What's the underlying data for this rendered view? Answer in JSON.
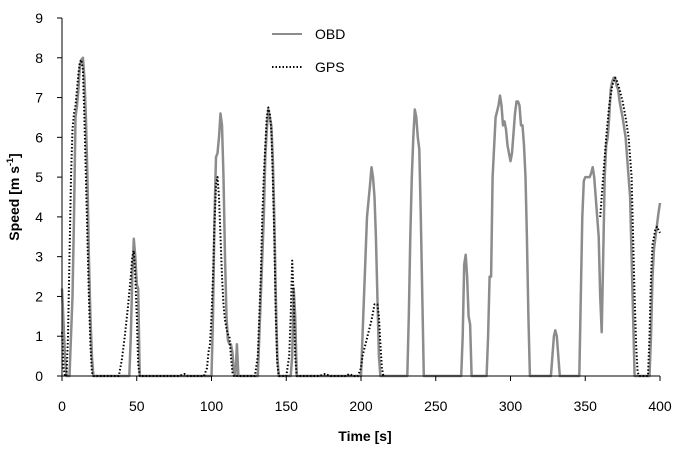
{
  "chart_data": {
    "type": "line",
    "xlabel": "Time [s]",
    "ylabel_main": "Speed [m s",
    "ylabel_sup": "-1",
    "ylabel_close": "]",
    "xlim": [
      0,
      400
    ],
    "ylim": [
      0,
      9
    ],
    "xticks": [
      0,
      50,
      100,
      150,
      200,
      250,
      300,
      350,
      400
    ],
    "yticks": [
      0,
      1,
      2,
      3,
      4,
      5,
      6,
      7,
      8,
      9
    ],
    "grid": false,
    "legend_position": "top-center",
    "series": [
      {
        "name": "OBD",
        "color": "#8c8c8c",
        "style": "solid",
        "points": [
          [
            0,
            2.2
          ],
          [
            2,
            0.5
          ],
          [
            3,
            0
          ],
          [
            5,
            0
          ],
          [
            7,
            2
          ],
          [
            8,
            4
          ],
          [
            9,
            6.5
          ],
          [
            10,
            6.8
          ],
          [
            11,
            7.2
          ],
          [
            12,
            7.8
          ],
          [
            13,
            7.95
          ],
          [
            14,
            8
          ],
          [
            15,
            7.5
          ],
          [
            16,
            6.5
          ],
          [
            17,
            5
          ],
          [
            18,
            3
          ],
          [
            19,
            1.5
          ],
          [
            20,
            0.5
          ],
          [
            21,
            0
          ],
          [
            45,
            0
          ],
          [
            46,
            1
          ],
          [
            47,
            2.5
          ],
          [
            48,
            3.45
          ],
          [
            49,
            3
          ],
          [
            50,
            2.3
          ],
          [
            51,
            2.2
          ],
          [
            52,
            0
          ],
          [
            100,
            0
          ],
          [
            101,
            1.5
          ],
          [
            102,
            4
          ],
          [
            103,
            5.5
          ],
          [
            104,
            5.6
          ],
          [
            105,
            6
          ],
          [
            106,
            6.6
          ],
          [
            107,
            6.3
          ],
          [
            108,
            5
          ],
          [
            109,
            3
          ],
          [
            110,
            1.5
          ],
          [
            111,
            0.9
          ],
          [
            112,
            0.8
          ],
          [
            113,
            0.8
          ],
          [
            114,
            0.6
          ],
          [
            115,
            0.1
          ],
          [
            116,
            0
          ],
          [
            117,
            0.8
          ],
          [
            118,
            0
          ],
          [
            131,
            0
          ],
          [
            133,
            2
          ],
          [
            135,
            4
          ],
          [
            136,
            5.5
          ],
          [
            137,
            6.2
          ],
          [
            138,
            6.7
          ],
          [
            139,
            6.5
          ],
          [
            140,
            6.3
          ],
          [
            141,
            5.5
          ],
          [
            142,
            4
          ],
          [
            143,
            2
          ],
          [
            144,
            0.5
          ],
          [
            145,
            0
          ],
          [
            153,
            0
          ],
          [
            154,
            0.5
          ],
          [
            155,
            2.2
          ],
          [
            156,
            1.5
          ],
          [
            157,
            0
          ],
          [
            200,
            0
          ],
          [
            202,
            2
          ],
          [
            204,
            4
          ],
          [
            206,
            4.8
          ],
          [
            207,
            5.25
          ],
          [
            208,
            5
          ],
          [
            209,
            4.5
          ],
          [
            210,
            3.5
          ],
          [
            211,
            2
          ],
          [
            212,
            0.5
          ],
          [
            213,
            0
          ],
          [
            231,
            0
          ],
          [
            232,
            1.5
          ],
          [
            233,
            3.5
          ],
          [
            234,
            5
          ],
          [
            235,
            6
          ],
          [
            236,
            6.7
          ],
          [
            237,
            6.5
          ],
          [
            238,
            6
          ],
          [
            239,
            5.7
          ],
          [
            240,
            4
          ],
          [
            241,
            2
          ],
          [
            242,
            0
          ],
          [
            267,
            0
          ],
          [
            268,
            1
          ],
          [
            269,
            2.8
          ],
          [
            270,
            3.05
          ],
          [
            271,
            2.5
          ],
          [
            272,
            1.5
          ],
          [
            273,
            1.3
          ],
          [
            274,
            0
          ],
          [
            284,
            0
          ],
          [
            285,
            1
          ],
          [
            286,
            2.5
          ],
          [
            287,
            2.5
          ],
          [
            288,
            5
          ],
          [
            290,
            6.5
          ],
          [
            292,
            6.8
          ],
          [
            293,
            7.05
          ],
          [
            294,
            6.8
          ],
          [
            295,
            6.3
          ],
          [
            296,
            6.4
          ],
          [
            297,
            6.2
          ],
          [
            298,
            5.8
          ],
          [
            300,
            5.4
          ],
          [
            301,
            5.6
          ],
          [
            303,
            6.6
          ],
          [
            304,
            6.9
          ],
          [
            305,
            6.9
          ],
          [
            306,
            6.8
          ],
          [
            307,
            6.3
          ],
          [
            308,
            6.3
          ],
          [
            309,
            5.8
          ],
          [
            310,
            5
          ],
          [
            311,
            3.5
          ],
          [
            312,
            1.5
          ],
          [
            313,
            0
          ],
          [
            327,
            0
          ],
          [
            328,
            0.5
          ],
          [
            329,
            1
          ],
          [
            330,
            1.15
          ],
          [
            331,
            1
          ],
          [
            332,
            0.5
          ],
          [
            333,
            0
          ],
          [
            346,
            0
          ],
          [
            347,
            2
          ],
          [
            348,
            4
          ],
          [
            349,
            4.9
          ],
          [
            350,
            5
          ],
          [
            351,
            5
          ],
          [
            352,
            5
          ],
          [
            353,
            5
          ],
          [
            354,
            5.1
          ],
          [
            355,
            5.25
          ],
          [
            356,
            5
          ],
          [
            357,
            4.5
          ],
          [
            358,
            4
          ],
          [
            359,
            3.5
          ],
          [
            360,
            2
          ],
          [
            361,
            1.1
          ],
          [
            362,
            3
          ],
          [
            363,
            5
          ],
          [
            364,
            5.8
          ],
          [
            365,
            6
          ],
          [
            366,
            6.5
          ],
          [
            367,
            7.2
          ],
          [
            368,
            7.4
          ],
          [
            369,
            7.5
          ],
          [
            370,
            7.5
          ],
          [
            371,
            7.3
          ],
          [
            372,
            7.2
          ],
          [
            373,
            6.9
          ],
          [
            375,
            6.5
          ],
          [
            377,
            6
          ],
          [
            378,
            5.5
          ],
          [
            380,
            4.5
          ],
          [
            381,
            3
          ],
          [
            382,
            1.5
          ],
          [
            383,
            0
          ],
          [
            393,
            0
          ],
          [
            394,
            1
          ],
          [
            395,
            2.5
          ],
          [
            396,
            3.2
          ],
          [
            397,
            3.5
          ],
          [
            398,
            3.8
          ],
          [
            399,
            4.1
          ],
          [
            400,
            4.35
          ]
        ]
      },
      {
        "name": "GPS",
        "color": "#000000",
        "style": "dotted",
        "points": [
          [
            0,
            1.1
          ],
          [
            1,
            0.2
          ],
          [
            2,
            0
          ],
          [
            3,
            0
          ],
          [
            4,
            1
          ],
          [
            5,
            3
          ],
          [
            6,
            5
          ],
          [
            7,
            6.2
          ],
          [
            8,
            6.6
          ],
          [
            9,
            6.8
          ],
          [
            10,
            7.2
          ],
          [
            11,
            7.6
          ],
          [
            12,
            7.9
          ],
          [
            13,
            7.95
          ],
          [
            14,
            7.7
          ],
          [
            15,
            6.5
          ],
          [
            16,
            5
          ],
          [
            17,
            3.5
          ],
          [
            18,
            2
          ],
          [
            19,
            0.8
          ],
          [
            20,
            0.1
          ],
          [
            21,
            0
          ],
          [
            38,
            0
          ],
          [
            40,
            0.4
          ],
          [
            42,
            1
          ],
          [
            44,
            1.7
          ],
          [
            46,
            2.5
          ],
          [
            47,
            3
          ],
          [
            48,
            3.15
          ],
          [
            49,
            2.5
          ],
          [
            50,
            1.5
          ],
          [
            51,
            0.3
          ],
          [
            52,
            0
          ],
          [
            78,
            0
          ],
          [
            82,
            0.05
          ],
          [
            84,
            0
          ],
          [
            95,
            0
          ],
          [
            97,
            0.2
          ],
          [
            98,
            0.6
          ],
          [
            99,
            0.8
          ],
          [
            100,
            1.5
          ],
          [
            101,
            2.5
          ],
          [
            102,
            3.8
          ],
          [
            103,
            4.8
          ],
          [
            104,
            5
          ],
          [
            105,
            4.5
          ],
          [
            106,
            3.5
          ],
          [
            107,
            2.5
          ],
          [
            108,
            1.8
          ],
          [
            109,
            1.4
          ],
          [
            110,
            1.2
          ],
          [
            111,
            1.05
          ],
          [
            112,
            1
          ],
          [
            113,
            0.5
          ],
          [
            114,
            0.1
          ],
          [
            115,
            0
          ],
          [
            129,
            0
          ],
          [
            131,
            0.5
          ],
          [
            132,
            1.5
          ],
          [
            133,
            2.5
          ],
          [
            134,
            4
          ],
          [
            135,
            5
          ],
          [
            136,
            5.8
          ],
          [
            137,
            6.5
          ],
          [
            138,
            6.75
          ],
          [
            139,
            6.6
          ],
          [
            140,
            6.2
          ],
          [
            141,
            5
          ],
          [
            142,
            3.5
          ],
          [
            143,
            1.5
          ],
          [
            144,
            0.3
          ],
          [
            145,
            0
          ],
          [
            150,
            0
          ],
          [
            152,
            0.5
          ],
          [
            153,
            1.5
          ],
          [
            154,
            2.9
          ],
          [
            155,
            2
          ],
          [
            156,
            0.5
          ],
          [
            157,
            0
          ],
          [
            172,
            0
          ],
          [
            176,
            0.05
          ],
          [
            180,
            0
          ],
          [
            190,
            0
          ],
          [
            192,
            0.05
          ],
          [
            195,
            0
          ],
          [
            198,
            0
          ],
          [
            200,
            0.2
          ],
          [
            201,
            0.5
          ],
          [
            203,
            0.8
          ],
          [
            205,
            1.1
          ],
          [
            207,
            1.4
          ],
          [
            208,
            1.6
          ],
          [
            209,
            1.8
          ],
          [
            211,
            1.8
          ],
          [
            212,
            1.5
          ],
          [
            213,
            0.8
          ],
          [
            214,
            0.2
          ],
          [
            215,
            0
          ]
        ]
      },
      {
        "name": "GPS",
        "color": "#000000",
        "style": "dotted",
        "points": [
          [
            360,
            4
          ],
          [
            362,
            5
          ],
          [
            364,
            6
          ],
          [
            366,
            6.8
          ],
          [
            368,
            7.3
          ],
          [
            370,
            7.5
          ],
          [
            371,
            7.45
          ],
          [
            373,
            7.2
          ],
          [
            375,
            6.9
          ],
          [
            377,
            6.5
          ],
          [
            379,
            6
          ],
          [
            381,
            5
          ],
          [
            382,
            3.5
          ],
          [
            383,
            2
          ],
          [
            384,
            0.8
          ],
          [
            385,
            0.1
          ],
          [
            386,
            0
          ],
          [
            392,
            0
          ],
          [
            393,
            1
          ],
          [
            394,
            2.5
          ],
          [
            395,
            3.3
          ],
          [
            396,
            3.5
          ],
          [
            397,
            3.7
          ],
          [
            398,
            3.75
          ],
          [
            400,
            3.6
          ]
        ]
      }
    ]
  }
}
